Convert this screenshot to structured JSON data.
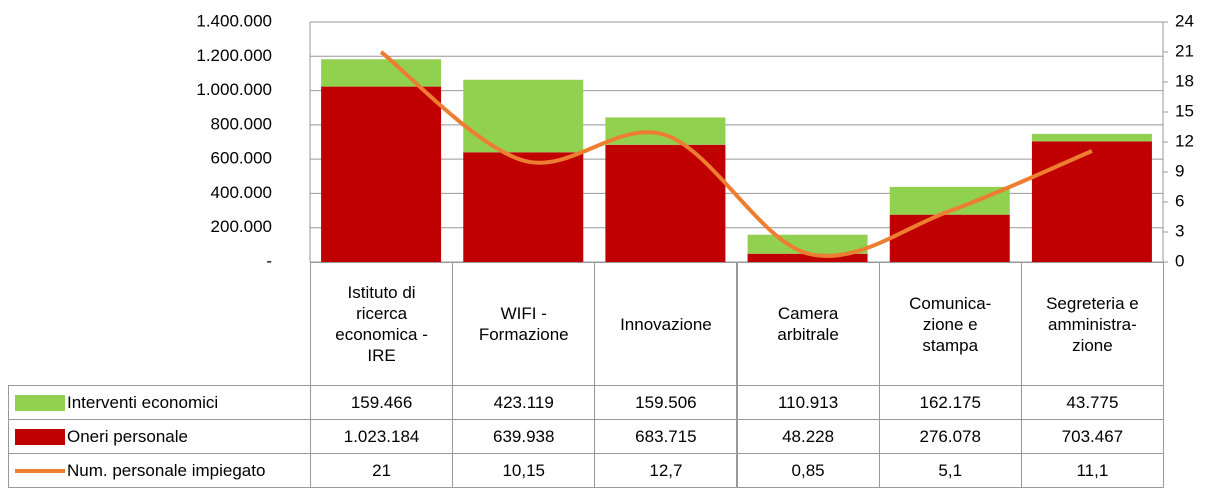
{
  "chart_data": {
    "type": "bar",
    "categories": [
      "Istituto di\nricerca\neconomica -\nIRE",
      "WIFI -\nFormazione",
      "Innovazione",
      "Camera\narbitrale",
      "Comunica-\nzione e\nstampa",
      "Segreteria e\namministra-\nzione"
    ],
    "series": [
      {
        "name": "Interventi economici",
        "color": "#92d050",
        "values": [
          159466,
          423119,
          159506,
          110913,
          162175,
          43775
        ],
        "value_labels": [
          "159.466",
          "423.119",
          "159.506",
          "110.913",
          "162.175",
          "43.775"
        ]
      },
      {
        "name": "Oneri personale",
        "color": "#c00000",
        "values": [
          1023184,
          639938,
          683715,
          48228,
          276078,
          703467
        ],
        "value_labels": [
          "1.023.184",
          "639.938",
          "683.715",
          "48.228",
          "276.078",
          "703.467"
        ]
      },
      {
        "name": "Num. personale impiegato",
        "color": "#ed7d31",
        "axis": "y2",
        "values": [
          21,
          10.15,
          12.7,
          0.85,
          5.1,
          11.1
        ],
        "value_labels": [
          "21",
          "10,15",
          "12,7",
          "0,85",
          "5,1",
          "11,1"
        ]
      }
    ],
    "stacked": true,
    "ylim": [
      0,
      1400000
    ],
    "yticks": [
      {
        "value": 0,
        "label": "-"
      },
      {
        "value": 200000,
        "label": "200.000"
      },
      {
        "value": 400000,
        "label": "400.000"
      },
      {
        "value": 600000,
        "label": "600.000"
      },
      {
        "value": 800000,
        "label": "800.000"
      },
      {
        "value": 1000000,
        "label": "1.000.000"
      },
      {
        "value": 1200000,
        "label": "1.200.000"
      },
      {
        "value": 1400000,
        "label": "1.400.000"
      }
    ],
    "y2lim": [
      0,
      24
    ],
    "y2ticks": [
      0,
      3,
      6,
      9,
      12,
      15,
      18,
      21,
      24
    ],
    "grid": true
  }
}
